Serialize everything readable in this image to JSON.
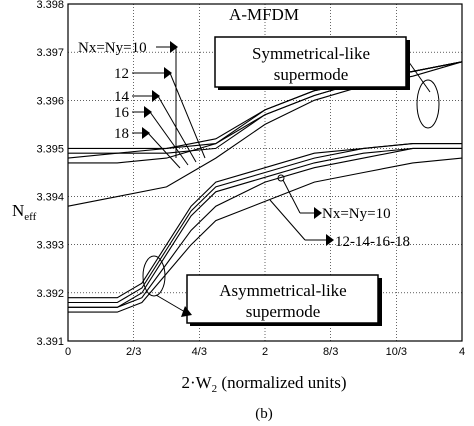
{
  "chart_data": {
    "type": "line",
    "title": "A-MFDM",
    "caption": "(b)",
    "xlabel_main": "2·W",
    "xlabel_sub": "2",
    "xlabel_rest": " (normalized units)",
    "ylabel_main": "N",
    "ylabel_sub": "eff",
    "xlim": [
      0,
      4
    ],
    "ylim": [
      3.391,
      3.398
    ],
    "grid": true,
    "x_ticks": [
      {
        "value": 0,
        "label": "0"
      },
      {
        "value": 0.6667,
        "label": "2/3"
      },
      {
        "value": 1.3333,
        "label": "4/3"
      },
      {
        "value": 2,
        "label": "2"
      },
      {
        "value": 2.6667,
        "label": "8/3"
      },
      {
        "value": 3.3333,
        "label": "10/3"
      },
      {
        "value": 4,
        "label": "4"
      }
    ],
    "y_ticks": [
      {
        "value": 3.391,
        "label": "3.391"
      },
      {
        "value": 3.392,
        "label": "3.392"
      },
      {
        "value": 3.393,
        "label": "3.393"
      },
      {
        "value": 3.394,
        "label": "3.394"
      },
      {
        "value": 3.395,
        "label": "3.395"
      },
      {
        "value": 3.396,
        "label": "3.396"
      },
      {
        "value": 3.397,
        "label": "3.397"
      },
      {
        "value": 3.398,
        "label": "3.398"
      }
    ],
    "series": [
      {
        "group": "symmetrical",
        "points": [
          [
            0,
            3.3948
          ],
          [
            0.5,
            3.3949
          ],
          [
            1,
            3.395
          ],
          [
            1.5,
            3.3952
          ],
          [
            2,
            3.3958
          ],
          [
            2.5,
            3.3962
          ],
          [
            3,
            3.3964
          ],
          [
            3.5,
            3.3966
          ],
          [
            4,
            3.3968
          ]
        ]
      },
      {
        "group": "symmetrical",
        "points": [
          [
            0,
            3.3947
          ],
          [
            0.5,
            3.3947
          ],
          [
            1,
            3.3948
          ],
          [
            1.5,
            3.3951
          ],
          [
            2,
            3.3958
          ],
          [
            2.5,
            3.3962
          ],
          [
            3,
            3.3964
          ],
          [
            3.5,
            3.3966
          ],
          [
            4,
            3.3968
          ]
        ]
      },
      {
        "group": "symmetrical",
        "points": [
          [
            0,
            3.3949
          ],
          [
            0.5,
            3.3949
          ],
          [
            1,
            3.3949
          ],
          [
            1.5,
            3.395
          ],
          [
            2,
            3.3957
          ],
          [
            2.5,
            3.3961
          ],
          [
            3,
            3.3964
          ],
          [
            3.5,
            3.3966
          ],
          [
            4,
            3.3968
          ]
        ]
      },
      {
        "group": "symmetrical",
        "points": [
          [
            0,
            3.395
          ],
          [
            0.5,
            3.395
          ],
          [
            1,
            3.395
          ],
          [
            1.5,
            3.3951
          ],
          [
            2,
            3.3957
          ],
          [
            2.5,
            3.3961
          ],
          [
            3,
            3.3964
          ],
          [
            3.5,
            3.3966
          ],
          [
            4,
            3.3968
          ]
        ]
      },
      {
        "group": "symmetrical",
        "points": [
          [
            0,
            3.3938
          ],
          [
            0.5,
            3.394
          ],
          [
            1,
            3.3942
          ],
          [
            1.5,
            3.3948
          ],
          [
            2,
            3.3955
          ],
          [
            2.5,
            3.396
          ],
          [
            3,
            3.3963
          ],
          [
            3.5,
            3.3965
          ],
          [
            4,
            3.3968
          ]
        ]
      },
      {
        "group": "asymmetrical",
        "points": [
          [
            0,
            3.3919
          ],
          [
            0.5,
            3.3919
          ],
          [
            0.75,
            3.3922
          ],
          [
            1,
            3.393
          ],
          [
            1.25,
            3.3938
          ],
          [
            1.5,
            3.3943
          ],
          [
            2,
            3.3946
          ],
          [
            2.5,
            3.3949
          ],
          [
            3,
            3.395
          ],
          [
            3.5,
            3.3951
          ],
          [
            4,
            3.3951
          ]
        ]
      },
      {
        "group": "asymmetrical",
        "points": [
          [
            0,
            3.3918
          ],
          [
            0.5,
            3.3918
          ],
          [
            0.75,
            3.3921
          ],
          [
            1,
            3.3929
          ],
          [
            1.25,
            3.3937
          ],
          [
            1.5,
            3.3942
          ],
          [
            2,
            3.3945
          ],
          [
            2.5,
            3.3948
          ],
          [
            3,
            3.395
          ],
          [
            3.5,
            3.3951
          ],
          [
            4,
            3.3951
          ]
        ]
      },
      {
        "group": "asymmetrical",
        "points": [
          [
            0,
            3.3917
          ],
          [
            0.5,
            3.3917
          ],
          [
            0.75,
            3.392
          ],
          [
            1,
            3.3928
          ],
          [
            1.25,
            3.3936
          ],
          [
            1.5,
            3.3941
          ],
          [
            2,
            3.3944
          ],
          [
            2.5,
            3.3947
          ],
          [
            3,
            3.3949
          ],
          [
            3.5,
            3.395
          ],
          [
            4,
            3.395
          ]
        ]
      },
      {
        "group": "asymmetrical",
        "points": [
          [
            0,
            3.3917
          ],
          [
            0.5,
            3.3917
          ],
          [
            0.75,
            3.3919
          ],
          [
            1,
            3.3926
          ],
          [
            1.25,
            3.3933
          ],
          [
            1.5,
            3.3938
          ],
          [
            2,
            3.3943
          ],
          [
            2.5,
            3.3946
          ],
          [
            3,
            3.3948
          ],
          [
            3.5,
            3.395
          ],
          [
            4,
            3.395
          ]
        ]
      },
      {
        "group": "asymmetrical",
        "points": [
          [
            0,
            3.3916
          ],
          [
            0.5,
            3.3916
          ],
          [
            0.75,
            3.3918
          ],
          [
            1,
            3.3924
          ],
          [
            1.25,
            3.393
          ],
          [
            1.5,
            3.3935
          ],
          [
            2,
            3.3939
          ],
          [
            2.5,
            3.3943
          ],
          [
            3,
            3.3945
          ],
          [
            3.5,
            3.3947
          ],
          [
            4,
            3.3948
          ]
        ]
      }
    ],
    "annotations": {
      "nx_labels": [
        "Nx=Ny=10",
        "12",
        "14",
        "16",
        "18"
      ],
      "sym_box": [
        "Symmetrical-like",
        "supermode"
      ],
      "asym_box": [
        "Asymmetrical-like",
        "supermode"
      ],
      "asym_label_1": "Nx=Ny=10",
      "asym_label_2": "12-14-16-18"
    }
  }
}
